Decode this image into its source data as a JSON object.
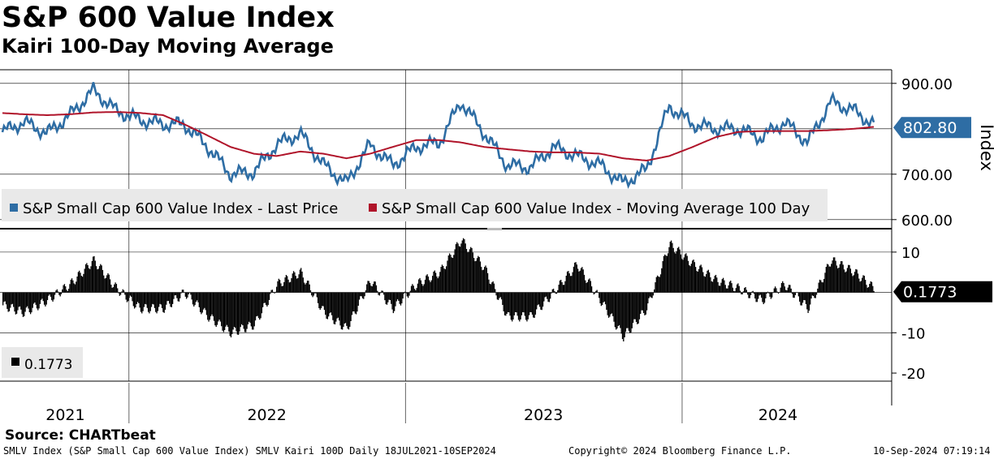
{
  "title": "S&P 600 Value Index",
  "subtitle": "Kairi 100-Day Moving Average",
  "source": "Source: CHARTbeat",
  "footer": {
    "left": "SMLV Index (S&P Small Cap 600 Value Index) SMLV Kairi 100D  Daily 18JUL2021-10SEP2024",
    "center": "Copyright© 2024 Bloomberg Finance L.P.",
    "right": "10-Sep-2024 07:19:14"
  },
  "colors": {
    "price": "#2e6da4",
    "ma": "#b0142a",
    "kairi": "#000000",
    "label_bg": "#2e6da4"
  },
  "chart_data": [
    {
      "type": "line",
      "panel": "top",
      "ylabel": "Index",
      "ylim": [
        580,
        930
      ],
      "y_ticks": [
        600,
        700,
        900
      ],
      "y_tick_labels": [
        "600.00",
        "700.00",
        "900.00"
      ],
      "last_value_label": "802.80",
      "x_labels": [
        "2021",
        "2022",
        "2023",
        "2024"
      ],
      "x_date_range": [
        "2021-07-18",
        "2024-09-10"
      ],
      "legend": [
        "S&P Small Cap 600 Value Index - Last Price",
        "S&P Small Cap 600 Value Index - Moving Average 100 Day"
      ],
      "series": [
        {
          "name": "S&P Small Cap 600 Value Index - Last Price",
          "x": [
            "2021-07",
            "2021-08",
            "2021-09",
            "2021-10",
            "2021-11",
            "2021-12",
            "2022-01",
            "2022-02",
            "2022-03",
            "2022-04",
            "2022-05",
            "2022-06",
            "2022-07",
            "2022-08",
            "2022-09",
            "2022-10",
            "2022-11",
            "2022-12",
            "2023-01",
            "2023-02",
            "2023-03",
            "2023-04",
            "2023-05",
            "2023-06",
            "2023-07",
            "2023-08",
            "2023-09",
            "2023-10",
            "2023-11",
            "2023-12",
            "2024-01",
            "2024-02",
            "2024-03",
            "2024-04",
            "2024-05",
            "2024-06",
            "2024-07",
            "2024-08",
            "2024-09"
          ],
          "values": [
            790,
            815,
            790,
            830,
            885,
            840,
            820,
            810,
            810,
            760,
            700,
            705,
            765,
            790,
            720,
            680,
            765,
            720,
            760,
            770,
            860,
            790,
            720,
            715,
            760,
            740,
            720,
            680,
            710,
            850,
            810,
            800,
            800,
            780,
            815,
            770,
            860,
            840,
            802.8
          ]
        },
        {
          "name": "S&P Small Cap 600 Value Index - Moving Average 100 Day",
          "x": [
            "2021-07",
            "2021-08",
            "2021-09",
            "2021-10",
            "2021-11",
            "2021-12",
            "2022-01",
            "2022-02",
            "2022-03",
            "2022-04",
            "2022-05",
            "2022-06",
            "2022-07",
            "2022-08",
            "2022-09",
            "2022-10",
            "2022-11",
            "2022-12",
            "2023-01",
            "2023-02",
            "2023-03",
            "2023-04",
            "2023-05",
            "2023-06",
            "2023-07",
            "2023-08",
            "2023-09",
            "2023-10",
            "2023-11",
            "2023-12",
            "2024-01",
            "2024-02",
            "2024-03",
            "2024-04",
            "2024-05",
            "2024-06",
            "2024-07",
            "2024-08",
            "2024-09"
          ],
          "values": [
            835,
            832,
            830,
            832,
            836,
            837,
            835,
            830,
            810,
            785,
            760,
            745,
            740,
            750,
            745,
            735,
            745,
            760,
            775,
            775,
            770,
            760,
            755,
            750,
            748,
            748,
            745,
            735,
            730,
            740,
            760,
            782,
            793,
            795,
            795,
            795,
            797,
            800,
            805
          ]
        }
      ]
    },
    {
      "type": "bar",
      "panel": "bottom",
      "ylabel": "",
      "ylim": [
        -22,
        15
      ],
      "y_ticks": [
        10,
        -10,
        -20
      ],
      "y_tick_labels": [
        "10",
        "-10",
        "-20"
      ],
      "last_value_label": "0.1773",
      "legend": [
        "0.1773"
      ],
      "x": [
        "2021-07",
        "2021-08",
        "2021-09",
        "2021-10",
        "2021-11",
        "2021-12",
        "2022-01",
        "2022-02",
        "2022-03",
        "2022-04",
        "2022-05",
        "2022-06",
        "2022-07",
        "2022-08",
        "2022-09",
        "2022-10",
        "2022-11",
        "2022-12",
        "2023-01",
        "2023-02",
        "2023-03",
        "2023-04",
        "2023-05",
        "2023-06",
        "2023-07",
        "2023-08",
        "2023-09",
        "2023-10",
        "2023-11",
        "2023-12",
        "2024-01",
        "2024-02",
        "2024-03",
        "2024-04",
        "2024-05",
        "2024-06",
        "2024-07",
        "2024-08",
        "2024-09"
      ],
      "values": [
        -3,
        -5,
        -2,
        2,
        8,
        1,
        -4,
        -4,
        0,
        -6,
        -10,
        -8,
        2,
        5,
        -5,
        -9,
        3,
        -4,
        2,
        5,
        13,
        6,
        -6,
        -6,
        0,
        7,
        -2,
        -11,
        -4,
        12,
        7,
        3,
        1,
        -2,
        2,
        -4,
        8,
        5,
        0.1773
      ]
    }
  ]
}
